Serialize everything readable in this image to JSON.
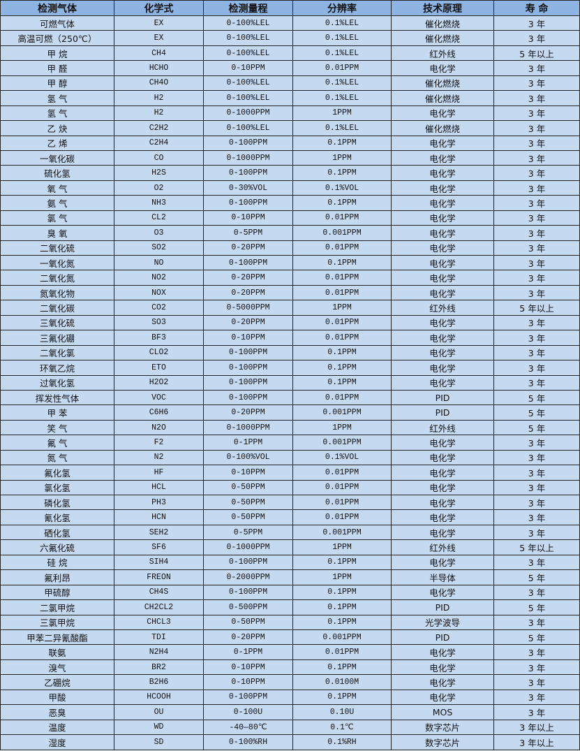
{
  "colors": {
    "header_bg": "#8db4e2",
    "row_bg": "#c5d9f1",
    "border": "#222222"
  },
  "table": {
    "headers": [
      "检测气体",
      "化学式",
      "检测量程",
      "分辨率",
      "技术原理",
      "寿 命"
    ],
    "rows": [
      [
        "可燃气体",
        "EX",
        "0-100%LEL",
        "0.1%LEL",
        "催化燃烧",
        "3 年"
      ],
      [
        "高温可燃（250℃）",
        "EX",
        "0-100%LEL",
        "0.1%LEL",
        "催化燃烧",
        "3 年"
      ],
      [
        "甲 烷",
        "CH4",
        "0-100%LEL",
        "0.1%LEL",
        "红外线",
        "5 年以上"
      ],
      [
        "甲 醛",
        "HCHO",
        "0-10PPM",
        "0.01PPM",
        "电化学",
        "3 年"
      ],
      [
        "甲 醇",
        "CH4O",
        "0-100%LEL",
        "0.1%LEL",
        "催化燃烧",
        "3 年"
      ],
      [
        "氢 气",
        "H2",
        "0-100%LEL",
        "0.1%LEL",
        "催化燃烧",
        "3 年"
      ],
      [
        "氢 气",
        "H2",
        "0-1000PPM",
        "1PPM",
        "电化学",
        "3 年"
      ],
      [
        "乙 炔",
        "C2H2",
        "0-100%LEL",
        "0.1%LEL",
        "催化燃烧",
        "3 年"
      ],
      [
        "乙 烯",
        "C2H4",
        "0-100PPM",
        "0.1PPM",
        "电化学",
        "3 年"
      ],
      [
        "一氧化碳",
        "CO",
        "0-1000PPM",
        "1PPM",
        "电化学",
        "3 年"
      ],
      [
        "硫化氢",
        "H2S",
        "0-100PPM",
        "0.1PPM",
        "电化学",
        "3 年"
      ],
      [
        "氧 气",
        "O2",
        "0-30%VOL",
        "0.1%VOL",
        "电化学",
        "3 年"
      ],
      [
        "氨 气",
        "NH3",
        "0-100PPM",
        "0.1PPM",
        "电化学",
        "3 年"
      ],
      [
        "氯 气",
        "CL2",
        "0-10PPM",
        "0.01PPM",
        "电化学",
        "3 年"
      ],
      [
        "臭 氧",
        "O3",
        "0-5PPM",
        "0.001PPM",
        "电化学",
        "3 年"
      ],
      [
        "二氧化硫",
        "SO2",
        "0-20PPM",
        "0.01PPM",
        "电化学",
        "3 年"
      ],
      [
        "一氧化氮",
        "NO",
        "0-100PPM",
        "0.1PPM",
        "电化学",
        "3 年"
      ],
      [
        "二氧化氮",
        "NO2",
        "0-20PPM",
        "0.01PPM",
        "电化学",
        "3 年"
      ],
      [
        "氮氧化物",
        "NOX",
        "0-20PPM",
        "0.01PPM",
        "电化学",
        "3 年"
      ],
      [
        "二氧化碳",
        "CO2",
        "0-5000PPM",
        "1PPM",
        "红外线",
        "5 年以上"
      ],
      [
        "三氧化硫",
        "SO3",
        "0-20PPM",
        "0.01PPM",
        "电化学",
        "3 年"
      ],
      [
        "三氟化硼",
        "BF3",
        "0-10PPM",
        "0.01PPM",
        "电化学",
        "3 年"
      ],
      [
        "二氧化氯",
        "CLO2",
        "0-100PPM",
        "0.1PPM",
        "电化学",
        "3 年"
      ],
      [
        "环氧乙烷",
        "ETO",
        "0-100PPM",
        "0.1PPM",
        "电化学",
        "3 年"
      ],
      [
        "过氧化氢",
        "H2O2",
        "0-100PPM",
        "0.1PPM",
        "电化学",
        "3 年"
      ],
      [
        "挥发性气体",
        "VOC",
        "0-100PPM",
        "0.01PPM",
        "PID",
        "5 年"
      ],
      [
        "甲 苯",
        "C6H6",
        "0-20PPM",
        "0.001PPM",
        "PID",
        "5 年"
      ],
      [
        "笑 气",
        "N2O",
        "0-1000PPM",
        "1PPM",
        "红外线",
        "5 年"
      ],
      [
        "氟 气",
        "F2",
        "0-1PPM",
        "0.001PPM",
        "电化学",
        "3 年"
      ],
      [
        "氮 气",
        "N2",
        "0-100%VOL",
        "0.1%VOL",
        "电化学",
        "3 年"
      ],
      [
        "氟化氢",
        "HF",
        "0-10PPM",
        "0.01PPM",
        "电化学",
        "3 年"
      ],
      [
        "氯化氢",
        "HCL",
        "0-50PPM",
        "0.01PPM",
        "电化学",
        "3 年"
      ],
      [
        "磷化氢",
        "PH3",
        "0-50PPM",
        "0.01PPM",
        "电化学",
        "3 年"
      ],
      [
        "氰化氢",
        "HCN",
        "0-50PPM",
        "0.01PPM",
        "电化学",
        "3 年"
      ],
      [
        "硒化氢",
        "SEH2",
        "0-5PPM",
        "0.001PPM",
        "电化学",
        "3 年"
      ],
      [
        "六氟化硫",
        "SF6",
        "0-1000PPM",
        "1PPM",
        "红外线",
        "5 年以上"
      ],
      [
        "硅 烷",
        "SIH4",
        "0-100PPM",
        "0.1PPM",
        "电化学",
        "3 年"
      ],
      [
        "氟利昂",
        "FREON",
        "0-2000PPM",
        "1PPM",
        "半导体",
        "5 年"
      ],
      [
        "甲硫醇",
        "CH4S",
        "0-100PPM",
        "0.1PPM",
        "电化学",
        "3 年"
      ],
      [
        "二氯甲烷",
        "CH2CL2",
        "0-500PPM",
        "0.1PPM",
        "PID",
        "5 年"
      ],
      [
        "三氯甲烷",
        "CHCL3",
        "0-50PPM",
        "0.1PPM",
        "光学波导",
        "3 年"
      ],
      [
        "甲苯二异氰酸酯",
        "TDI",
        "0-20PPM",
        "0.001PPM",
        "PID",
        "5 年"
      ],
      [
        "联氨",
        "N2H4",
        "0-1PPM",
        "0.01PPM",
        "电化学",
        "3 年"
      ],
      [
        "溴气",
        "BR2",
        "0-10PPM",
        "0.1PPM",
        "电化学",
        "3 年"
      ],
      [
        "乙硼烷",
        "B2H6",
        "0-10PPM",
        "0.0100M",
        "电化学",
        "3 年"
      ],
      [
        "甲酸",
        "HCOOH",
        "0-100PPM",
        "0.1PPM",
        "电化学",
        "3 年"
      ],
      [
        "恶臭",
        "OU",
        "0-100U",
        "0.10U",
        "MOS",
        "3 年"
      ],
      [
        "温度",
        "WD",
        "-40—80℃",
        "0.1℃",
        "数字芯片",
        "3 年以上"
      ],
      [
        "湿度",
        "SD",
        "0-100%RH",
        "0.1%RH",
        "数字芯片",
        "3 年以上"
      ]
    ]
  }
}
